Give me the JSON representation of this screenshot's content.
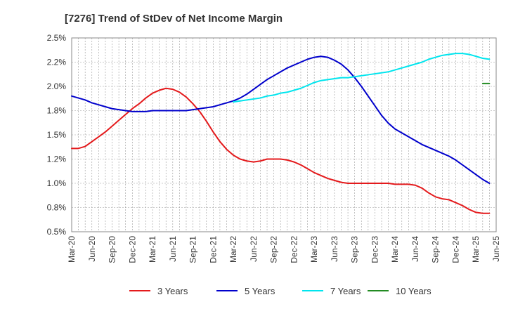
{
  "chart_data": {
    "type": "line",
    "title": "[7276]  Trend of StDev of Net Income Margin",
    "xlabel": "",
    "ylabel": "",
    "x_tick_labels": [
      "Mar-20",
      "Jun-20",
      "Sep-20",
      "Dec-20",
      "Mar-21",
      "Jun-21",
      "Sep-21",
      "Dec-21",
      "Mar-22",
      "Jun-22",
      "Sep-22",
      "Dec-22",
      "Mar-23",
      "Jun-23",
      "Sep-23",
      "Dec-23",
      "Mar-24",
      "Jun-24",
      "Sep-24",
      "Dec-24",
      "Mar-25",
      "Jun-25"
    ],
    "y_tick_labels": [
      "0.5%",
      "0.8%",
      "1.0%",
      "1.2%",
      "1.5%",
      "1.8%",
      "2.0%",
      "2.2%",
      "2.5%"
    ],
    "ylim": [
      0.5,
      2.5
    ],
    "grid": true,
    "legend_position": "bottom",
    "series": [
      {
        "name": "3 Years",
        "color": "#e41a1c",
        "points": [
          [
            "Mar-20",
            1.36
          ],
          [
            "Apr-20",
            1.36
          ],
          [
            "May-20",
            1.38
          ],
          [
            "Jun-20",
            1.43
          ],
          [
            "Jul-20",
            1.48
          ],
          [
            "Aug-20",
            1.53
          ],
          [
            "Sep-20",
            1.59
          ],
          [
            "Oct-20",
            1.65
          ],
          [
            "Nov-20",
            1.71
          ],
          [
            "Dec-20",
            1.77
          ],
          [
            "Jan-21",
            1.82
          ],
          [
            "Feb-21",
            1.88
          ],
          [
            "Mar-21",
            1.93
          ],
          [
            "Apr-21",
            1.96
          ],
          [
            "May-21",
            1.98
          ],
          [
            "Jun-21",
            1.97
          ],
          [
            "Jul-21",
            1.94
          ],
          [
            "Aug-21",
            1.89
          ],
          [
            "Sep-21",
            1.82
          ],
          [
            "Oct-21",
            1.74
          ],
          [
            "Nov-21",
            1.64
          ],
          [
            "Dec-21",
            1.53
          ],
          [
            "Jan-22",
            1.43
          ],
          [
            "Feb-22",
            1.35
          ],
          [
            "Mar-22",
            1.29
          ],
          [
            "Apr-22",
            1.25
          ],
          [
            "May-22",
            1.23
          ],
          [
            "Jun-22",
            1.22
          ],
          [
            "Jul-22",
            1.23
          ],
          [
            "Aug-22",
            1.25
          ],
          [
            "Sep-22",
            1.25
          ],
          [
            "Oct-22",
            1.25
          ],
          [
            "Nov-22",
            1.24
          ],
          [
            "Dec-22",
            1.22
          ],
          [
            "Jan-23",
            1.19
          ],
          [
            "Feb-23",
            1.15
          ],
          [
            "Mar-23",
            1.11
          ],
          [
            "Apr-23",
            1.08
          ],
          [
            "May-23",
            1.05
          ],
          [
            "Jun-23",
            1.03
          ],
          [
            "Jul-23",
            1.01
          ],
          [
            "Aug-23",
            1.0
          ],
          [
            "Sep-23",
            1.0
          ],
          [
            "Oct-23",
            1.0
          ],
          [
            "Nov-23",
            1.0
          ],
          [
            "Dec-23",
            1.0
          ],
          [
            "Jan-24",
            1.0
          ],
          [
            "Feb-24",
            1.0
          ],
          [
            "Mar-24",
            0.99
          ],
          [
            "Apr-24",
            0.99
          ],
          [
            "May-24",
            0.99
          ],
          [
            "Jun-24",
            0.98
          ],
          [
            "Jul-24",
            0.95
          ],
          [
            "Aug-24",
            0.9
          ],
          [
            "Sep-24",
            0.86
          ],
          [
            "Oct-24",
            0.84
          ],
          [
            "Nov-24",
            0.83
          ],
          [
            "Dec-24",
            0.8
          ],
          [
            "Jan-25",
            0.77
          ],
          [
            "Feb-25",
            0.73
          ],
          [
            "Mar-25",
            0.7
          ],
          [
            "Apr-25",
            0.69
          ],
          [
            "May-25",
            0.69
          ]
        ]
      },
      {
        "name": "5 Years",
        "color": "#0000cc",
        "points": [
          [
            "Mar-20",
            1.9
          ],
          [
            "Apr-20",
            1.88
          ],
          [
            "May-20",
            1.86
          ],
          [
            "Jun-20",
            1.83
          ],
          [
            "Jul-20",
            1.81
          ],
          [
            "Aug-20",
            1.79
          ],
          [
            "Sep-20",
            1.77
          ],
          [
            "Oct-20",
            1.76
          ],
          [
            "Nov-20",
            1.75
          ],
          [
            "Dec-20",
            1.74
          ],
          [
            "Jan-21",
            1.74
          ],
          [
            "Feb-21",
            1.74
          ],
          [
            "Mar-21",
            1.75
          ],
          [
            "Apr-21",
            1.75
          ],
          [
            "May-21",
            1.75
          ],
          [
            "Jun-21",
            1.75
          ],
          [
            "Jul-21",
            1.75
          ],
          [
            "Aug-21",
            1.75
          ],
          [
            "Sep-21",
            1.76
          ],
          [
            "Oct-21",
            1.77
          ],
          [
            "Nov-21",
            1.78
          ],
          [
            "Dec-21",
            1.79
          ],
          [
            "Jan-22",
            1.81
          ],
          [
            "Feb-22",
            1.83
          ],
          [
            "Mar-22",
            1.85
          ],
          [
            "Apr-22",
            1.88
          ],
          [
            "May-22",
            1.92
          ],
          [
            "Jun-22",
            1.97
          ],
          [
            "Jul-22",
            2.02
          ],
          [
            "Aug-22",
            2.07
          ],
          [
            "Sep-22",
            2.11
          ],
          [
            "Oct-22",
            2.15
          ],
          [
            "Nov-22",
            2.19
          ],
          [
            "Dec-22",
            2.22
          ],
          [
            "Jan-23",
            2.25
          ],
          [
            "Feb-23",
            2.28
          ],
          [
            "Mar-23",
            2.3
          ],
          [
            "Apr-23",
            2.31
          ],
          [
            "May-23",
            2.3
          ],
          [
            "Jun-23",
            2.27
          ],
          [
            "Jul-23",
            2.23
          ],
          [
            "Aug-23",
            2.17
          ],
          [
            "Sep-23",
            2.09
          ],
          [
            "Oct-23",
            2.0
          ],
          [
            "Nov-23",
            1.9
          ],
          [
            "Dec-23",
            1.8
          ],
          [
            "Jan-24",
            1.7
          ],
          [
            "Feb-24",
            1.62
          ],
          [
            "Mar-24",
            1.56
          ],
          [
            "Apr-24",
            1.52
          ],
          [
            "May-24",
            1.48
          ],
          [
            "Jun-24",
            1.44
          ],
          [
            "Jul-24",
            1.4
          ],
          [
            "Aug-24",
            1.37
          ],
          [
            "Sep-24",
            1.34
          ],
          [
            "Oct-24",
            1.31
          ],
          [
            "Nov-24",
            1.28
          ],
          [
            "Dec-24",
            1.24
          ],
          [
            "Jan-25",
            1.19
          ],
          [
            "Feb-25",
            1.14
          ],
          [
            "Mar-25",
            1.09
          ],
          [
            "Apr-25",
            1.04
          ],
          [
            "May-25",
            1.0
          ]
        ]
      },
      {
        "name": "7 Years",
        "color": "#00e5ee",
        "points": [
          [
            "Mar-22",
            1.84
          ],
          [
            "Apr-22",
            1.85
          ],
          [
            "May-22",
            1.86
          ],
          [
            "Jun-22",
            1.87
          ],
          [
            "Jul-22",
            1.88
          ],
          [
            "Aug-22",
            1.9
          ],
          [
            "Sep-22",
            1.91
          ],
          [
            "Oct-22",
            1.93
          ],
          [
            "Nov-22",
            1.94
          ],
          [
            "Dec-22",
            1.96
          ],
          [
            "Jan-23",
            1.98
          ],
          [
            "Feb-23",
            2.01
          ],
          [
            "Mar-23",
            2.04
          ],
          [
            "Apr-23",
            2.06
          ],
          [
            "May-23",
            2.07
          ],
          [
            "Jun-23",
            2.08
          ],
          [
            "Jul-23",
            2.09
          ],
          [
            "Aug-23",
            2.09
          ],
          [
            "Sep-23",
            2.1
          ],
          [
            "Oct-23",
            2.11
          ],
          [
            "Nov-23",
            2.12
          ],
          [
            "Dec-23",
            2.13
          ],
          [
            "Jan-24",
            2.14
          ],
          [
            "Feb-24",
            2.15
          ],
          [
            "Mar-24",
            2.17
          ],
          [
            "Apr-24",
            2.19
          ],
          [
            "May-24",
            2.21
          ],
          [
            "Jun-24",
            2.23
          ],
          [
            "Jul-24",
            2.25
          ],
          [
            "Aug-24",
            2.28
          ],
          [
            "Sep-24",
            2.3
          ],
          [
            "Oct-24",
            2.32
          ],
          [
            "Nov-24",
            2.33
          ],
          [
            "Dec-24",
            2.34
          ],
          [
            "Jan-25",
            2.34
          ],
          [
            "Feb-25",
            2.33
          ],
          [
            "Mar-25",
            2.31
          ],
          [
            "Apr-25",
            2.29
          ],
          [
            "May-25",
            2.28
          ]
        ]
      },
      {
        "name": "10 Years",
        "color": "#228b22",
        "points": [
          [
            "Apr-25",
            2.03
          ],
          [
            "May-25",
            2.03
          ]
        ]
      }
    ]
  }
}
